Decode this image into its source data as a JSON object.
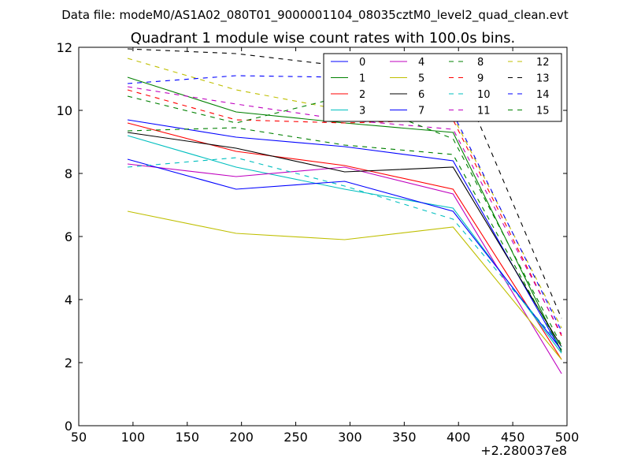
{
  "figure": {
    "suptitle": "Data file: modeM0/AS1A02_080T01_9000001104_08035cztM0_level2_quad_clean.evt"
  },
  "chart_data": {
    "type": "line",
    "title": "Quadrant 1 module wise count rates with 100.0s bins.",
    "xlabel": "",
    "ylabel": "",
    "x_offset_label": "+2.280037e8",
    "xlim": [
      50,
      500
    ],
    "ylim": [
      0,
      12
    ],
    "xticks": [
      "50",
      "100",
      "150",
      "200",
      "250",
      "300",
      "350",
      "400",
      "450",
      "500"
    ],
    "yticks": [
      "0",
      "2",
      "4",
      "6",
      "8",
      "10",
      "12"
    ],
    "x": [
      95,
      195,
      295,
      395,
      495
    ],
    "legend_location": "top-right",
    "series": [
      {
        "name": "0",
        "color": "#0000ff",
        "dash": "solid",
        "values": [
          9.7,
          9.15,
          8.85,
          8.4,
          2.35
        ]
      },
      {
        "name": "1",
        "color": "#008000",
        "dash": "solid",
        "values": [
          11.05,
          9.95,
          9.6,
          9.3,
          2.35
        ]
      },
      {
        "name": "2",
        "color": "#ff0000",
        "dash": "solid",
        "values": [
          9.6,
          8.7,
          8.25,
          7.5,
          2.1
        ]
      },
      {
        "name": "3",
        "color": "#00bfbf",
        "dash": "solid",
        "values": [
          9.2,
          8.2,
          7.5,
          6.9,
          2.3
        ]
      },
      {
        "name": "4",
        "color": "#bf00bf",
        "dash": "solid",
        "values": [
          8.3,
          7.9,
          8.2,
          7.35,
          1.65
        ]
      },
      {
        "name": "5",
        "color": "#bfbf00",
        "dash": "solid",
        "values": [
          6.8,
          6.1,
          5.9,
          6.3,
          2.1
        ]
      },
      {
        "name": "6",
        "color": "#000000",
        "dash": "solid",
        "values": [
          9.3,
          8.8,
          8.05,
          8.2,
          2.5
        ]
      },
      {
        "name": "7",
        "color": "#0000ff",
        "dash": "solid",
        "values": [
          8.45,
          7.5,
          7.75,
          6.8,
          2.4
        ]
      },
      {
        "name": "8",
        "color": "#008000",
        "dash": "dashed",
        "values": [
          9.35,
          9.45,
          8.9,
          8.6,
          2.4
        ]
      },
      {
        "name": "9",
        "color": "#ff0000",
        "dash": "dashed",
        "values": [
          10.65,
          9.7,
          9.6,
          9.7,
          2.85
        ]
      },
      {
        "name": "10",
        "color": "#00bfbf",
        "dash": "dashed",
        "values": [
          8.2,
          8.5,
          7.6,
          6.55,
          2.5
        ]
      },
      {
        "name": "11",
        "color": "#bf00bf",
        "dash": "dashed",
        "values": [
          10.75,
          10.2,
          9.7,
          9.4,
          2.9
        ]
      },
      {
        "name": "12",
        "color": "#bfbf00",
        "dash": "dashed",
        "values": [
          11.65,
          10.65,
          10.0,
          9.8,
          3.1
        ]
      },
      {
        "name": "13",
        "color": "#000000",
        "dash": "dashed",
        "values": [
          11.95,
          11.8,
          11.4,
          11.55,
          3.4
        ]
      },
      {
        "name": "14",
        "color": "#0000ff",
        "dash": "dashed",
        "values": [
          10.85,
          11.1,
          11.05,
          9.9,
          3.0
        ]
      },
      {
        "name": "15",
        "color": "#008000",
        "dash": "dashed",
        "values": [
          10.45,
          9.6,
          10.45,
          9.1,
          2.55
        ]
      }
    ]
  }
}
